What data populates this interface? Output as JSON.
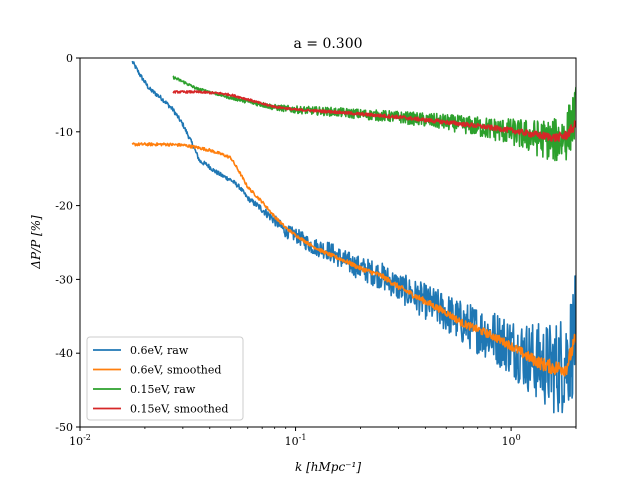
{
  "chart_data": {
    "type": "line",
    "title": "a = 0.300",
    "xlabel": "k [hMpc⁻¹]",
    "ylabel": "ΔP/P [%]",
    "xscale": "log",
    "xlim": [
      0.01,
      2.0
    ],
    "ylim": [
      -50,
      0
    ],
    "xticks": [
      {
        "value": 0.01,
        "base": "10",
        "exp": "-2"
      },
      {
        "value": 0.1,
        "base": "10",
        "exp": "-1"
      },
      {
        "value": 1.0,
        "base": "10",
        "exp": "0"
      }
    ],
    "yticks": [
      {
        "value": 0,
        "label": "0"
      },
      {
        "value": -10,
        "label": "-10"
      },
      {
        "value": -20,
        "label": "-20"
      },
      {
        "value": -30,
        "label": "-30"
      },
      {
        "value": -40,
        "label": "-40"
      },
      {
        "value": -50,
        "label": "-50"
      }
    ],
    "legend_position": "lower-left",
    "series": [
      {
        "name": "0.6eV, raw",
        "color": "#1f77b4",
        "noise": [
          [
            0.06,
            0.3
          ],
          [
            0.1,
            1.0
          ],
          [
            0.3,
            2.0
          ],
          [
            0.6,
            3.0
          ],
          [
            1.0,
            4.0
          ],
          [
            1.5,
            6.0
          ],
          [
            2.0,
            8.0
          ]
        ],
        "x": [
          0.0175,
          0.019,
          0.021,
          0.024,
          0.027,
          0.03,
          0.033,
          0.036,
          0.039,
          0.042,
          0.046,
          0.05,
          0.055,
          0.06,
          0.07,
          0.08,
          0.09,
          0.1,
          0.12,
          0.14,
          0.17,
          0.2,
          0.25,
          0.3,
          0.4,
          0.5,
          0.6,
          0.8,
          1.0,
          1.2,
          1.4,
          1.6,
          1.8,
          2.0
        ],
        "y": [
          -0.5,
          -2.3,
          -4.2,
          -5.5,
          -7.0,
          -9.0,
          -11.5,
          -14.0,
          -14.5,
          -15.3,
          -16.0,
          -16.5,
          -17.5,
          -19.0,
          -20.5,
          -22.0,
          -23.5,
          -24.0,
          -25.5,
          -26.0,
          -27.5,
          -28.5,
          -29.5,
          -31.0,
          -33.0,
          -34.5,
          -36.0,
          -37.5,
          -39.0,
          -40.5,
          -41.5,
          -42.0,
          -41.0,
          -37.0
        ]
      },
      {
        "name": "0.6eV, smoothed",
        "color": "#ff7f0e",
        "noise": [
          [
            0.1,
            0.2
          ],
          [
            1.0,
            0.6
          ],
          [
            2.0,
            1.2
          ]
        ],
        "x": [
          0.0175,
          0.02,
          0.025,
          0.03,
          0.033,
          0.036,
          0.04,
          0.045,
          0.05,
          0.055,
          0.06,
          0.07,
          0.08,
          0.09,
          0.1,
          0.12,
          0.14,
          0.17,
          0.2,
          0.25,
          0.3,
          0.4,
          0.5,
          0.6,
          0.8,
          1.0,
          1.2,
          1.4,
          1.6,
          1.8,
          2.0
        ],
        "y": [
          -11.7,
          -11.7,
          -11.7,
          -11.8,
          -12.0,
          -12.2,
          -12.5,
          -13.0,
          -13.5,
          -15.5,
          -17.5,
          -19.5,
          -21.5,
          -23.0,
          -24.0,
          -25.5,
          -26.5,
          -27.5,
          -28.5,
          -29.5,
          -31.0,
          -33.0,
          -34.5,
          -36.0,
          -37.5,
          -39.0,
          -40.5,
          -41.5,
          -42.0,
          -42.0,
          -38.0
        ]
      },
      {
        "name": "0.15eV, raw",
        "color": "#2ca02c",
        "noise": [
          [
            0.05,
            0.2
          ],
          [
            0.1,
            0.5
          ],
          [
            0.3,
            0.8
          ],
          [
            0.6,
            1.2
          ],
          [
            1.0,
            1.8
          ],
          [
            1.5,
            2.8
          ],
          [
            2.0,
            3.8
          ]
        ],
        "x": [
          0.027,
          0.03,
          0.035,
          0.04,
          0.045,
          0.05,
          0.06,
          0.07,
          0.08,
          0.1,
          0.15,
          0.2,
          0.3,
          0.5,
          0.7,
          1.0,
          1.3,
          1.6,
          1.8,
          2.0
        ],
        "y": [
          -2.6,
          -3.2,
          -4.2,
          -4.6,
          -5.0,
          -5.4,
          -5.9,
          -6.3,
          -6.7,
          -7.0,
          -7.3,
          -7.6,
          -8.0,
          -8.7,
          -9.3,
          -10.0,
          -10.8,
          -11.2,
          -10.5,
          -7.5
        ]
      },
      {
        "name": "0.15eV, smoothed",
        "color": "#d62728",
        "noise": [
          [
            0.1,
            0.15
          ],
          [
            1.0,
            0.35
          ],
          [
            2.0,
            0.7
          ]
        ],
        "x": [
          0.027,
          0.03,
          0.035,
          0.04,
          0.045,
          0.05,
          0.06,
          0.07,
          0.08,
          0.1,
          0.15,
          0.2,
          0.3,
          0.5,
          0.7,
          1.0,
          1.3,
          1.6,
          1.8,
          2.0
        ],
        "y": [
          -4.6,
          -4.6,
          -4.6,
          -4.7,
          -4.8,
          -5.0,
          -5.6,
          -6.2,
          -6.6,
          -7.0,
          -7.3,
          -7.6,
          -8.0,
          -8.7,
          -9.2,
          -9.8,
          -10.4,
          -10.8,
          -10.5,
          -9.0
        ]
      }
    ]
  }
}
